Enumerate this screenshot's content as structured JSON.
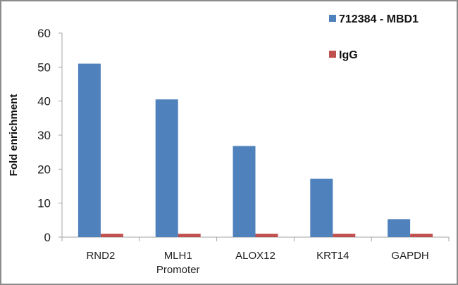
{
  "chart_data": {
    "type": "bar",
    "title": "",
    "xlabel": "",
    "ylabel": "Fold enrichment",
    "ylim": [
      0,
      60
    ],
    "yticks": [
      0,
      10,
      20,
      30,
      40,
      50,
      60
    ],
    "grid": false,
    "legend_position": "top-right",
    "categories": [
      "RND2",
      "MLH1 Promoter",
      "ALOX12",
      "KRT14",
      "GAPDH"
    ],
    "category_lines": [
      [
        "RND2"
      ],
      [
        "MLH1",
        "Promoter"
      ],
      [
        "ALOX12"
      ],
      [
        "KRT14"
      ],
      [
        "GAPDH"
      ]
    ],
    "series": [
      {
        "name": "712384 - MBD1",
        "color": "#4f81bd",
        "values": [
          51,
          40.5,
          26.8,
          17.2,
          5.3
        ]
      },
      {
        "name": "IgG",
        "color": "#c0504d",
        "values": [
          1,
          1,
          1,
          1,
          1
        ]
      }
    ]
  }
}
